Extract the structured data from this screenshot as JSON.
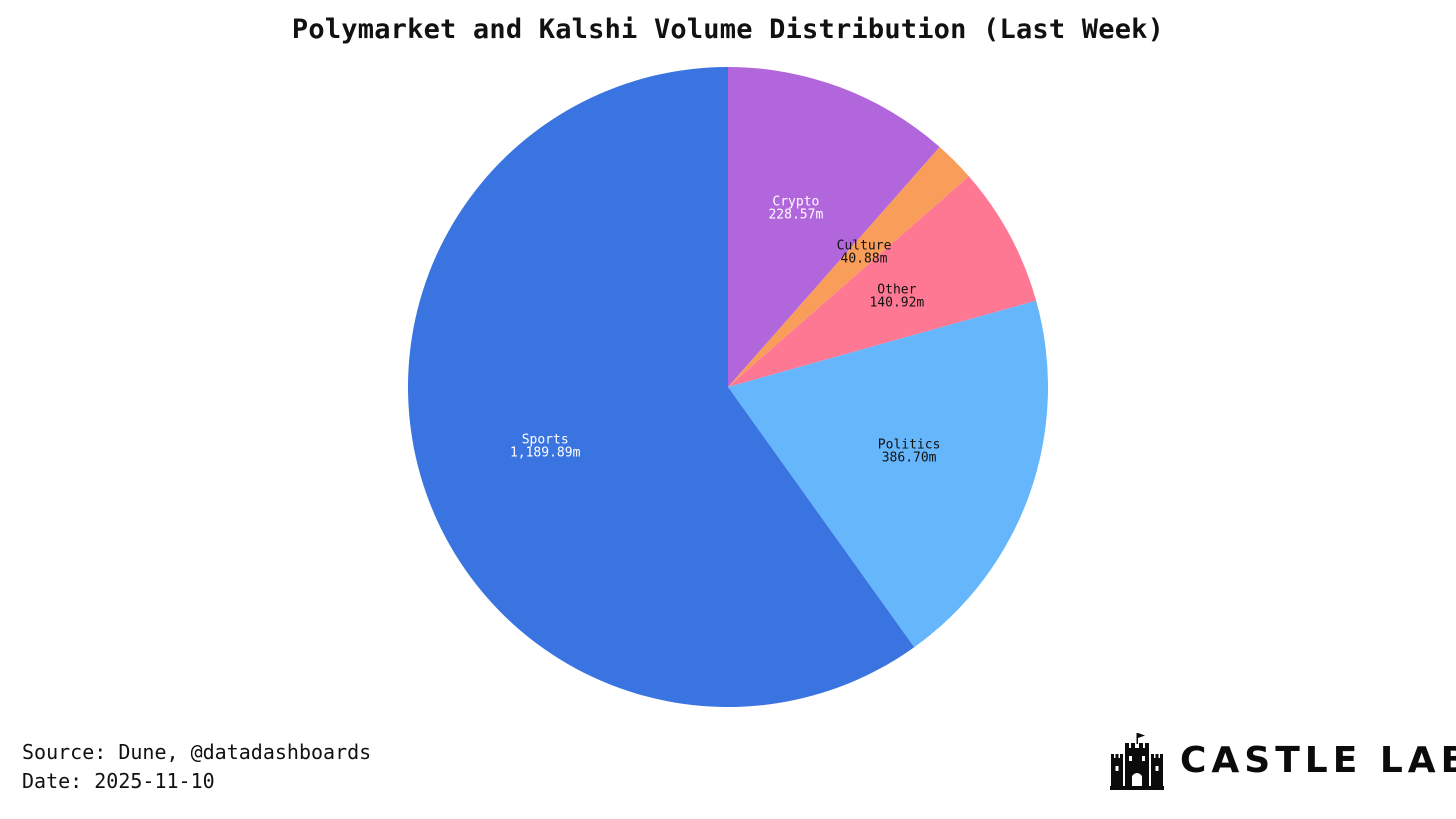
{
  "chart_data": {
    "type": "pie",
    "title": "Polymarket and Kalshi Volume Distribution (Last Week)",
    "start": "top",
    "direction": "clockwise",
    "slices": [
      {
        "label": "Crypto",
        "value": 228.57,
        "value_label": "228.57m",
        "color": "#B266DC",
        "text_color": "#ffffff"
      },
      {
        "label": "Culture",
        "value": 40.88,
        "value_label": "40.88m",
        "color": "#F99D5A",
        "text_color": "#111111"
      },
      {
        "label": "Other",
        "value": 140.92,
        "value_label": "140.92m",
        "color": "#FF7893",
        "text_color": "#111111"
      },
      {
        "label": "Politics",
        "value": 386.7,
        "value_label": "386.70m",
        "color": "#66B6FC",
        "text_color": "#111111"
      },
      {
        "label": "Sports",
        "value": 1189.89,
        "value_label": "1,189.89m",
        "color": "#3A74E0",
        "text_color": "#ffffff"
      }
    ]
  },
  "footer": {
    "source": "Source: Dune, @datadashboards",
    "date": "Date: 2025-11-10"
  },
  "brand": {
    "name": "CASTLE LABS",
    "icon": "castle-icon"
  }
}
